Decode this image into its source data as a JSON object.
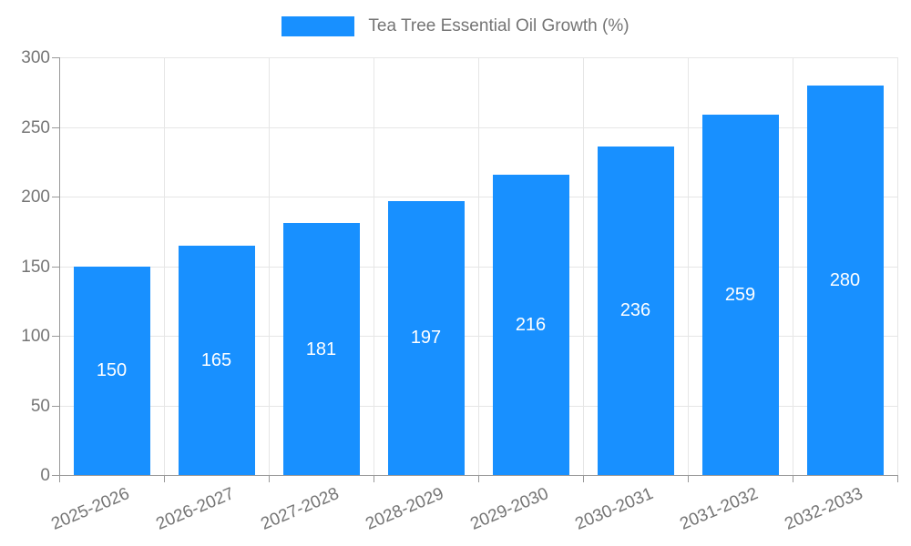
{
  "chart_data": {
    "type": "bar",
    "title": "Tea Tree Essential Oil Growth (%)",
    "categories": [
      "2025-2026",
      "2026-2027",
      "2027-2028",
      "2028-2029",
      "2029-2030",
      "2030-2031",
      "2031-2032",
      "2032-2033"
    ],
    "values": [
      150,
      165,
      181,
      197,
      216,
      236,
      259,
      280
    ],
    "xlabel": "",
    "ylabel": "",
    "ylim": [
      0,
      300
    ],
    "yticks": [
      0,
      50,
      100,
      150,
      200,
      250,
      300
    ],
    "grid": true,
    "legend_position": "top-center",
    "legend_entries": [
      "Tea Tree Essential Oil Growth (%)"
    ]
  },
  "colors": {
    "bar": "#1890ff",
    "bar_label": "#ffffff",
    "grid": "#e6e6e6",
    "axis": "#999999",
    "text": "#757575",
    "background": "#ffffff"
  }
}
